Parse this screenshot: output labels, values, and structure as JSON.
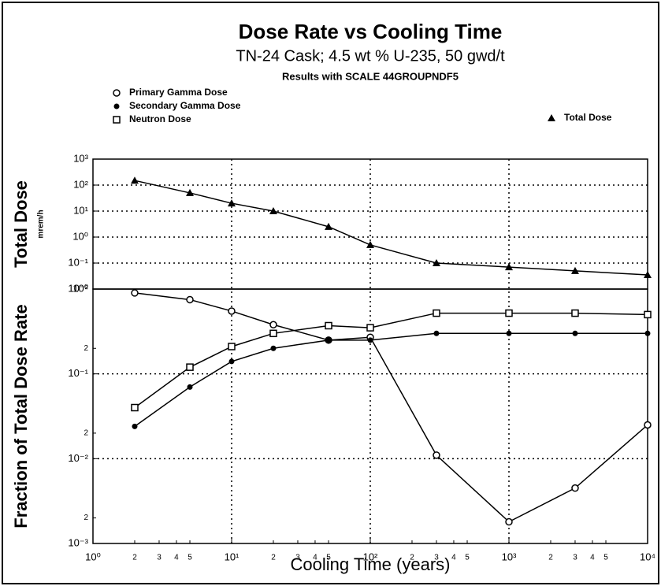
{
  "chart_data": [
    {
      "type": "line",
      "title": "Dose Rate vs Cooling Time",
      "subtitle": "TN-24 Cask; 4.5 wt % U-235, 50 gwd/t",
      "annotation": "Results with SCALE 44GROUPNDF5",
      "ylabel": "Total Dose",
      "ylabel_unit": "mrem/h",
      "xscale": "log",
      "yscale": "log",
      "grid": true,
      "legend": "upper right",
      "x": [
        2,
        5,
        10,
        20,
        50,
        100,
        300,
        1000,
        3000,
        10000
      ],
      "xlim": [
        1,
        10000
      ],
      "ylim": [
        0.01,
        1000
      ],
      "yticks": [
        {
          "value": 1000,
          "label": "10³"
        },
        {
          "value": 100,
          "label": "10²"
        },
        {
          "value": 10,
          "label": "10¹"
        },
        {
          "value": 1,
          "label": "10⁰"
        },
        {
          "value": 0.1,
          "label": "10⁻¹"
        },
        {
          "value": 0.01,
          "label": "10⁻²"
        }
      ],
      "series": [
        {
          "name": "Total Dose",
          "color": "#000000",
          "marker": "triangle",
          "values": [
            150,
            50,
            20,
            10,
            2.5,
            0.5,
            0.1,
            0.07,
            0.05,
            0.035
          ]
        }
      ]
    },
    {
      "type": "line",
      "ylabel": "Fraction of Total Dose Rate",
      "xlabel": "Cooling Time (years)",
      "xscale": "log",
      "yscale": "log",
      "grid": true,
      "legend": "upper left",
      "x": [
        2,
        5,
        10,
        20,
        50,
        100,
        300,
        1000,
        3000,
        10000
      ],
      "xlim": [
        1,
        10000
      ],
      "ylim": [
        0.001,
        1
      ],
      "xticks": [
        {
          "value": 1,
          "label": "10⁰"
        },
        {
          "value": 2,
          "label": "2"
        },
        {
          "value": 3,
          "label": "3"
        },
        {
          "value": 4,
          "label": "4"
        },
        {
          "value": 5,
          "label": "5"
        },
        {
          "value": 10,
          "label": "10¹"
        },
        {
          "value": 20,
          "label": "2"
        },
        {
          "value": 30,
          "label": "3"
        },
        {
          "value": 40,
          "label": "4"
        },
        {
          "value": 50,
          "label": "5"
        },
        {
          "value": 100,
          "label": "10²"
        },
        {
          "value": 200,
          "label": "2"
        },
        {
          "value": 300,
          "label": "3"
        },
        {
          "value": 400,
          "label": "4"
        },
        {
          "value": 500,
          "label": "5"
        },
        {
          "value": 1000,
          "label": "10³"
        },
        {
          "value": 2000,
          "label": "2"
        },
        {
          "value": 3000,
          "label": "3"
        },
        {
          "value": 4000,
          "label": "4"
        },
        {
          "value": 5000,
          "label": "5"
        },
        {
          "value": 10000,
          "label": "10⁴"
        }
      ],
      "yticks": [
        {
          "value": 1,
          "label": "10⁰"
        },
        {
          "value": 0.2,
          "label": "2"
        },
        {
          "value": 0.1,
          "label": "10⁻¹"
        },
        {
          "value": 0.02,
          "label": "2"
        },
        {
          "value": 0.01,
          "label": "10⁻²"
        },
        {
          "value": 0.002,
          "label": "2"
        },
        {
          "value": 0.001,
          "label": "10⁻³"
        }
      ],
      "series": [
        {
          "name": "Primary Gamma Dose",
          "color": "#000000",
          "marker": "circle",
          "values": [
            0.9,
            0.75,
            0.55,
            0.38,
            0.25,
            0.27,
            0.011,
            0.0018,
            0.0045,
            0.025
          ]
        },
        {
          "name": "Secondary Gamma Dose",
          "color": "#000000",
          "marker": "dot",
          "values": [
            0.024,
            0.07,
            0.14,
            0.2,
            0.25,
            0.25,
            0.3,
            0.3,
            0.3,
            0.3
          ]
        },
        {
          "name": "Neutron Dose",
          "color": "#000000",
          "marker": "square",
          "values": [
            0.04,
            0.12,
            0.21,
            0.3,
            0.37,
            0.35,
            0.52,
            0.52,
            0.52,
            0.5
          ]
        }
      ]
    }
  ]
}
